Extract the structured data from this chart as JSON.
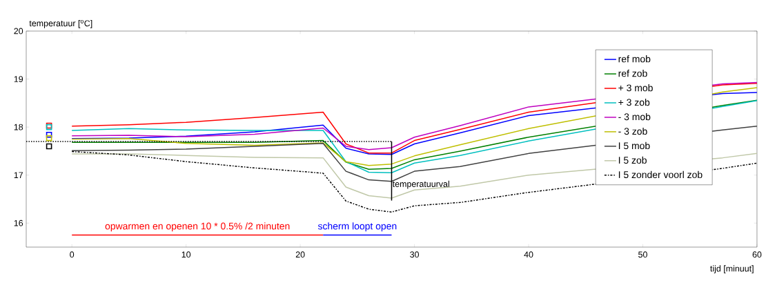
{
  "chart_data": {
    "type": "line",
    "ylabel": "temperatuur [$^{o}$C]",
    "xlabel": "tijd [minuut]",
    "x": [
      0,
      5,
      10,
      16,
      22,
      24,
      26,
      28,
      30,
      34,
      40,
      57,
      60
    ],
    "xlim": [
      -4,
      60
    ],
    "ylim": [
      15.5,
      20
    ],
    "xticks": [
      0,
      10,
      20,
      30,
      40,
      50,
      60
    ],
    "yticks": [
      16,
      17,
      18,
      19,
      20
    ],
    "grid": false,
    "legend": "top right",
    "annotations": [
      {
        "text": "temperatuurval",
        "x": 28,
        "y": 16.8
      }
    ],
    "series": [
      {
        "name": "ref mob",
        "color": "#0000ff",
        "values": [
          17.76,
          17.77,
          17.81,
          17.9,
          18.04,
          17.56,
          17.44,
          17.43,
          17.65,
          17.88,
          18.24,
          18.7,
          18.72
        ]
      },
      {
        "name": "ref zob",
        "color": "#008000",
        "values": [
          17.68,
          17.68,
          17.68,
          17.68,
          17.72,
          17.27,
          17.12,
          17.14,
          17.32,
          17.5,
          17.79,
          18.45,
          18.56
        ]
      },
      {
        "name": "+ 3 mob",
        "color": "#ff0000",
        "values": [
          18.02,
          18.05,
          18.1,
          18.2,
          18.31,
          17.65,
          17.46,
          17.46,
          17.72,
          17.95,
          18.31,
          18.88,
          18.91
        ]
      },
      {
        "name": "+ 3 zob",
        "color": "#00bfbf",
        "values": [
          17.93,
          17.97,
          17.94,
          17.93,
          17.93,
          17.28,
          17.06,
          17.05,
          17.25,
          17.41,
          17.71,
          18.43,
          18.55
        ]
      },
      {
        "name": "- 3 mob",
        "color": "#bf00bf",
        "values": [
          17.82,
          17.83,
          17.8,
          17.85,
          17.98,
          17.6,
          17.53,
          17.57,
          17.79,
          18.03,
          18.42,
          18.9,
          18.93
        ]
      },
      {
        "name": "- 3 zob",
        "color": "#bfbf00",
        "values": [
          17.75,
          17.76,
          17.66,
          17.62,
          17.67,
          17.28,
          17.2,
          17.23,
          17.4,
          17.63,
          17.97,
          18.73,
          18.82
        ]
      },
      {
        "name": "I 5 mob",
        "color": "#404040",
        "values": [
          17.51,
          17.52,
          17.54,
          17.6,
          17.66,
          17.08,
          16.9,
          16.87,
          17.08,
          17.18,
          17.45,
          17.94,
          18.02
        ]
      },
      {
        "name": "I 5 zob",
        "color": "#c0c8a8",
        "values": [
          17.44,
          17.44,
          17.41,
          17.37,
          17.36,
          16.75,
          16.57,
          16.52,
          16.69,
          16.77,
          17.0,
          17.36,
          17.45
        ]
      },
      {
        "name": "I 5 zonder voorl zob",
        "color": "#000000",
        "line_style": "dashdot",
        "values": [
          17.49,
          17.42,
          17.28,
          17.15,
          17.04,
          16.46,
          16.29,
          16.23,
          16.36,
          16.43,
          16.64,
          17.14,
          17.25
        ]
      },
      {
        "type": "line",
        "color": "#000000",
        "line_style": "dotted",
        "x": [
          -4,
          28
        ],
        "values": [
          17.7,
          17.7
        ]
      },
      {
        "type": "line",
        "color": "#000000",
        "x": [
          28,
          28
        ],
        "values": [
          17.7,
          16.47
        ]
      },
      {
        "name": "opwarmen en openen 10 * 0.5% /2 minuten",
        "color": "#ff0000",
        "x": [
          0,
          22
        ],
        "values": [
          15.75,
          15.75
        ]
      },
      {
        "name": "scherm loopt open",
        "color": "#0000ff",
        "x": [
          22,
          28
        ],
        "values": [
          15.75,
          15.75
        ]
      },
      {
        "type": "scatter",
        "marker": "square",
        "color": "#ff0000",
        "x": [
          -2
        ],
        "values": [
          18.03
        ]
      },
      {
        "type": "scatter",
        "marker": "square",
        "color": "#00bfbf",
        "x": [
          -2
        ],
        "values": [
          18.0
        ]
      },
      {
        "type": "scatter",
        "marker": "square",
        "color": "#0000ff",
        "x": [
          -2
        ],
        "values": [
          17.84
        ]
      },
      {
        "type": "scatter",
        "marker": "square",
        "color": "#bfbf00",
        "x": [
          -2
        ],
        "values": [
          17.77
        ]
      },
      {
        "type": "scatter",
        "marker": "square",
        "color": "#000000",
        "x": [
          -2
        ],
        "values": [
          17.6
        ]
      }
    ]
  }
}
